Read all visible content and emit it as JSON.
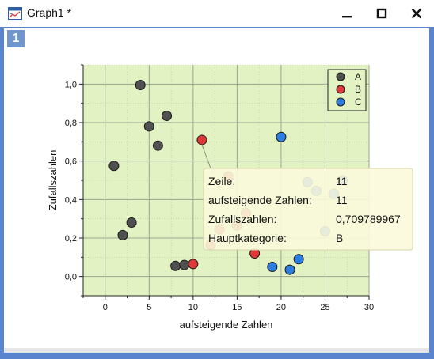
{
  "window": {
    "title": "Graph1 *",
    "icon": "graph-window-icon",
    "page_number": "1",
    "controls": {
      "minimize": "—",
      "maximize": "□",
      "close": "✕"
    }
  },
  "chart_data": {
    "type": "scatter",
    "title": "",
    "xlabel": "aufsteigende Zahlen",
    "ylabel": "Zufallszahlen",
    "xlim": [
      -2.5,
      30
    ],
    "ylim": [
      -0.1,
      1.1
    ],
    "xticks": [
      0,
      5,
      10,
      15,
      20,
      25,
      30
    ],
    "xtick_labels": [
      "0",
      "5",
      "10",
      "15",
      "20",
      "25",
      "30"
    ],
    "yticks": [
      0.0,
      0.2,
      0.4,
      0.6,
      0.8,
      1.0
    ],
    "ytick_labels": [
      "0,0",
      "0,2",
      "0,4",
      "0,6",
      "0,8",
      "1,0"
    ],
    "grid": true,
    "background": "#e2f2c2",
    "legend_position": "top-right",
    "series": [
      {
        "name": "A",
        "color": "#505050",
        "x": [
          1,
          2,
          3,
          4,
          5,
          6,
          7,
          8,
          9
        ],
        "y": [
          0.575,
          0.215,
          0.28,
          0.995,
          0.78,
          0.68,
          0.835,
          0.055,
          0.06
        ]
      },
      {
        "name": "B",
        "color": "#e03838",
        "x": [
          10,
          11,
          12,
          13,
          14,
          15,
          16,
          17
        ],
        "y": [
          0.065,
          0.709789967,
          0.165,
          0.245,
          0.52,
          0.265,
          0.33,
          0.12
        ]
      },
      {
        "name": "C",
        "color": "#2b7de0",
        "x": [
          19,
          20,
          21,
          22,
          23,
          24,
          25,
          26,
          27
        ],
        "y": [
          0.05,
          0.725,
          0.035,
          0.09,
          0.49,
          0.445,
          0.235,
          0.43,
          0.5
        ]
      }
    ],
    "tooltip": {
      "point": {
        "x": 11,
        "y": 0.709789967
      },
      "rows": [
        {
          "label": "Zeile:",
          "value": "11"
        },
        {
          "label": "aufsteigende Zahlen:",
          "value": "11"
        },
        {
          "label": "Zufallszahlen:",
          "value": "0,709789967"
        },
        {
          "label": "Hauptkategorie:",
          "value": "B"
        }
      ]
    }
  }
}
